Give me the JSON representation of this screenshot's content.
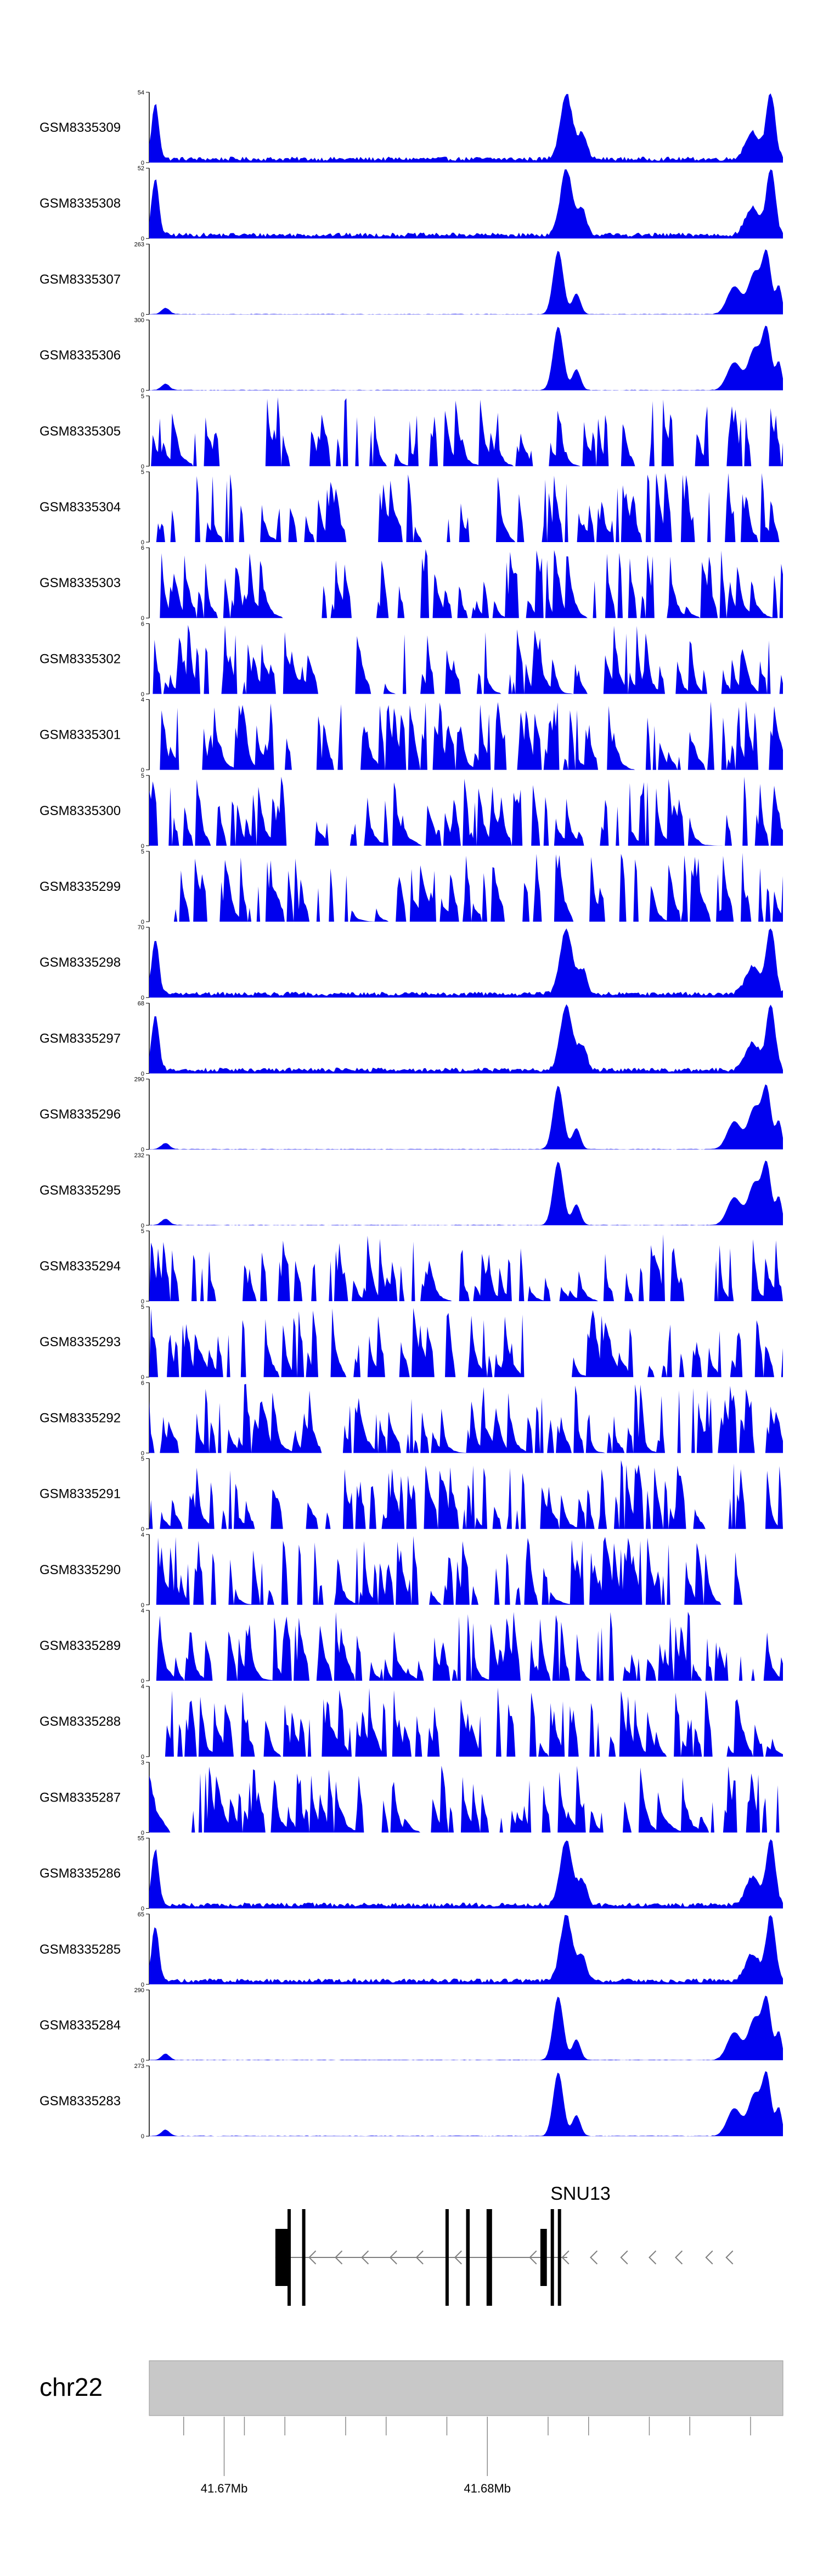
{
  "colors": {
    "signal": "#0000ee",
    "axis": "#000000",
    "ideogram": "#c8c8c8",
    "gene": "#000000"
  },
  "chart_data": {
    "type": "area",
    "tracks": [
      {
        "name": "GSM8335309",
        "ymax": 54,
        "profile": "broad"
      },
      {
        "name": "GSM8335308",
        "ymax": 52,
        "profile": "broad"
      },
      {
        "name": "GSM8335307",
        "ymax": 263,
        "profile": "sharp"
      },
      {
        "name": "GSM8335306",
        "ymax": 300,
        "profile": "sharp"
      },
      {
        "name": "GSM8335305",
        "ymax": 5,
        "profile": "noise"
      },
      {
        "name": "GSM8335304",
        "ymax": 5,
        "profile": "noise"
      },
      {
        "name": "GSM8335303",
        "ymax": 6,
        "profile": "noise"
      },
      {
        "name": "GSM8335302",
        "ymax": 6,
        "profile": "noise"
      },
      {
        "name": "GSM8335301",
        "ymax": 4,
        "profile": "noise"
      },
      {
        "name": "GSM8335300",
        "ymax": 5,
        "profile": "noise"
      },
      {
        "name": "GSM8335299",
        "ymax": 5,
        "profile": "noise"
      },
      {
        "name": "GSM8335298",
        "ymax": 70,
        "profile": "broad"
      },
      {
        "name": "GSM8335297",
        "ymax": 68,
        "profile": "broad"
      },
      {
        "name": "GSM8335296",
        "ymax": 290,
        "profile": "sharp"
      },
      {
        "name": "GSM8335295",
        "ymax": 232,
        "profile": "sharp"
      },
      {
        "name": "GSM8335294",
        "ymax": 5,
        "profile": "noise"
      },
      {
        "name": "GSM8335293",
        "ymax": 5,
        "profile": "noise"
      },
      {
        "name": "GSM8335292",
        "ymax": 6,
        "profile": "noise"
      },
      {
        "name": "GSM8335291",
        "ymax": 5,
        "profile": "noise"
      },
      {
        "name": "GSM8335290",
        "ymax": 4,
        "profile": "noise"
      },
      {
        "name": "GSM8335289",
        "ymax": 4,
        "profile": "noise"
      },
      {
        "name": "GSM8335288",
        "ymax": 4,
        "profile": "noise"
      },
      {
        "name": "GSM8335287",
        "ymax": 3,
        "profile": "noise"
      },
      {
        "name": "GSM8335286",
        "ymax": 55,
        "profile": "broad"
      },
      {
        "name": "GSM8335285",
        "ymax": 65,
        "profile": "broad"
      },
      {
        "name": "GSM8335284",
        "ymax": 290,
        "profile": "sharp"
      },
      {
        "name": "GSM8335283",
        "ymax": 273,
        "profile": "sharp"
      }
    ],
    "gene": {
      "name": "SNU13",
      "strand": "-",
      "exons": [
        {
          "start": 41.66953,
          "end": 41.67013,
          "type": "utr"
        },
        {
          "start": 41.67013,
          "end": 41.67026,
          "type": "cds"
        },
        {
          "start": 41.67085,
          "end": 41.67091,
          "type": "cds"
        },
        {
          "start": 41.67793,
          "end": 41.678,
          "type": "cds"
        },
        {
          "start": 41.67895,
          "end": 41.67913,
          "type": "cds"
        },
        {
          "start": 41.67996,
          "end": 41.68004,
          "type": "cds"
        },
        {
          "start": 41.68007,
          "end": 41.68012,
          "type": "cds"
        },
        {
          "start": 41.68262,
          "end": 41.68294,
          "type": "utr"
        },
        {
          "start": 41.68313,
          "end": 41.68319,
          "type": "cds"
        },
        {
          "start": 41.68348,
          "end": 41.68357,
          "type": "cds"
        }
      ],
      "arrow_positions": [
        41.6712,
        41.6725,
        41.6738,
        41.6752,
        41.6765,
        41.6784,
        41.6821,
        41.6837,
        41.6851,
        41.6866,
        41.688,
        41.6893,
        41.6908,
        41.6918
      ]
    },
    "chromosome": "chr22",
    "x_range": [
      41.6633,
      41.6946
    ],
    "x_ticks": [
      {
        "pos": 41.665,
        "label": ""
      },
      {
        "pos": 41.667,
        "label": "41.67Mb"
      },
      {
        "pos": 41.668,
        "label": ""
      },
      {
        "pos": 41.67,
        "label": ""
      },
      {
        "pos": 41.673,
        "label": ""
      },
      {
        "pos": 41.675,
        "label": ""
      },
      {
        "pos": 41.678,
        "label": ""
      },
      {
        "pos": 41.68,
        "label": "41.68Mb"
      },
      {
        "pos": 41.683,
        "label": ""
      },
      {
        "pos": 41.685,
        "label": ""
      },
      {
        "pos": 41.688,
        "label": ""
      },
      {
        "pos": 41.69,
        "label": ""
      },
      {
        "pos": 41.693,
        "label": ""
      }
    ],
    "peaks": {
      "broad": [
        {
          "center": 41.6636,
          "width": 0.00018,
          "height": 0.8
        },
        {
          "center": 41.6839,
          "width": 0.0003,
          "height": 0.95
        },
        {
          "center": 41.6847,
          "width": 0.00022,
          "height": 0.35
        },
        {
          "center": 41.6931,
          "width": 0.00035,
          "height": 0.4
        },
        {
          "center": 41.694,
          "width": 0.00022,
          "height": 0.95
        }
      ],
      "sharp": [
        {
          "center": 41.6641,
          "width": 0.0002,
          "height": 0.09
        },
        {
          "center": 41.6835,
          "width": 0.00025,
          "height": 0.92
        },
        {
          "center": 41.6844,
          "width": 0.0002,
          "height": 0.3
        },
        {
          "center": 41.6922,
          "width": 0.00035,
          "height": 0.4
        },
        {
          "center": 41.6932,
          "width": 0.0003,
          "height": 0.6
        },
        {
          "center": 41.6938,
          "width": 0.00022,
          "height": 0.85
        },
        {
          "center": 41.6944,
          "width": 0.00015,
          "height": 0.4
        }
      ]
    }
  }
}
